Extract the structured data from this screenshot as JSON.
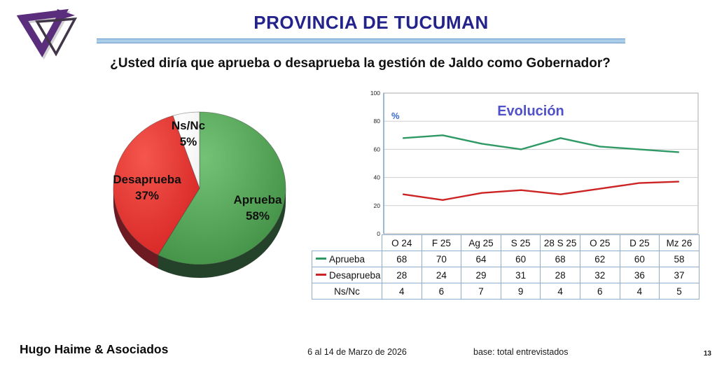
{
  "header": {
    "title": "PROVINCIA DE TUCUMAN",
    "question": "¿Usted diría que aprueba o desaprueba la gestión de Jaldo como Gobernador?"
  },
  "footer": {
    "company": "Hugo Haime & Asociados",
    "date_range": "6 al 14 de Marzo de 2026",
    "base_note": "base: total entrevistados",
    "page_number": "13"
  },
  "colors": {
    "title_navy": "#23238B",
    "accent_band": "#A9CCE9",
    "evolution_title": "#5050C8",
    "percent_label": "#3366CC",
    "approve_line": "#2E9965",
    "disapprove_line": "#CC2424",
    "grid": "#CFCFCF",
    "plot_border": "#ABABAB",
    "axis_blue": "#6D9BC3",
    "table_border": "#8FAECE",
    "logo_purple": "#5A2D7D",
    "logo_outline": "#413548"
  },
  "chart_data": [
    {
      "type": "pie",
      "style": "3d",
      "slices": [
        {
          "id": "aprueba",
          "label": "Aprueba",
          "value": 58,
          "pct_label": "58%",
          "color_light": "#74C276",
          "color_dark": "#418F44",
          "color_rim": "#24412A"
        },
        {
          "id": "desaprueba",
          "label": "Desaprueba",
          "value": 37,
          "pct_label": "37%",
          "color_light": "#F4564C",
          "color_dark": "#D62424",
          "color_rim": "#6E1A22"
        },
        {
          "id": "nsnc",
          "label": "Ns/Nc",
          "value": 5,
          "pct_label": "5%",
          "color_light": "#FFFFFF",
          "color_dark": "#F2F2F2",
          "color_rim": "#CCCCCC"
        }
      ]
    },
    {
      "type": "line",
      "title": "Evolución",
      "y_axis_label": "%",
      "ylim": [
        0,
        100
      ],
      "yticks": [
        0,
        20,
        40,
        60,
        80,
        100
      ],
      "grid": true,
      "legend_position": "table-left",
      "categories": [
        "O 24",
        "F 25",
        "Ag 25",
        "S 25",
        "28 S 25",
        "O 25",
        "D 25",
        "Mz 26"
      ],
      "series": [
        {
          "id": "aprueba",
          "name": "Aprueba",
          "color": "#2E9965",
          "show_line": true,
          "values": [
            68,
            70,
            64,
            60,
            68,
            62,
            60,
            58
          ]
        },
        {
          "id": "desaprueba",
          "name": "Desaprueba",
          "color": "#CC2424",
          "show_line": true,
          "values": [
            28,
            24,
            29,
            31,
            28,
            32,
            36,
            37
          ]
        },
        {
          "id": "nsnc",
          "name": "Ns/Nc",
          "color": null,
          "show_line": false,
          "values": [
            4,
            6,
            7,
            9,
            4,
            6,
            4,
            5
          ]
        }
      ]
    }
  ]
}
